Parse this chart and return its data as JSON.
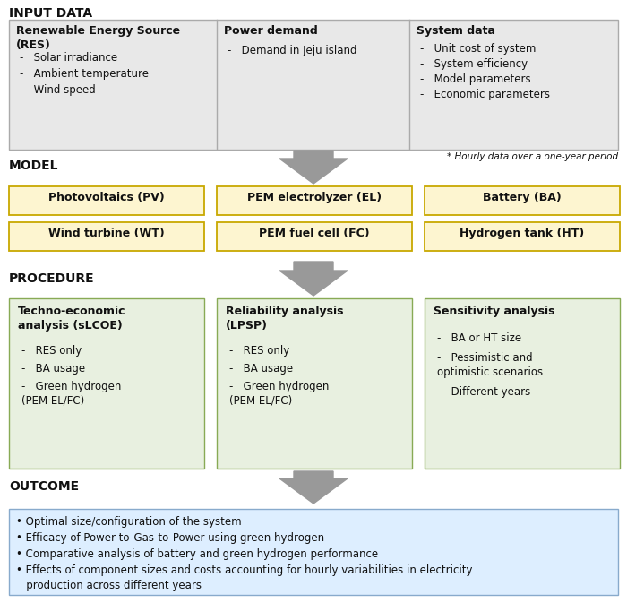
{
  "bg_color": "#ffffff",
  "input_box_color": "#e8e8e8",
  "input_box_edgecolor": "#aaaaaa",
  "model_box_color": "#fdf5d0",
  "model_box_edgecolor": "#c8a800",
  "procedure_box_color": "#e8f0e0",
  "procedure_box_edgecolor": "#88aa55",
  "outcome_box_color": "#ddeeff",
  "outcome_box_edgecolor": "#88aacc",
  "arrow_color": "#999999",
  "text_color": "#111111",
  "input_col1_title": "Renewable Energy Source\n(RES)",
  "input_col1_items": [
    "Solar irradiance",
    "Ambient temperature",
    "Wind speed"
  ],
  "input_col2_title": "Power demand",
  "input_col2_items": [
    "Demand in Jeju island"
  ],
  "input_col3_title": "System data",
  "input_col3_items": [
    "Unit cost of system",
    "System efficiency",
    "Model parameters",
    "Economic parameters"
  ],
  "input_footnote": "* Hourly data over a one-year period",
  "model_row1": [
    "Photovoltaics (PV)",
    "PEM electrolyzer (EL)",
    "Battery (BA)"
  ],
  "model_row2": [
    "Wind turbine (WT)",
    "PEM fuel cell (FC)",
    "Hydrogen tank (HT)"
  ],
  "proc_col1_title": "Techno-economic\nanalysis (sLCOE)",
  "proc_col1_items": [
    "RES only",
    "BA usage",
    "Green hydrogen\n(PEM EL/FC)"
  ],
  "proc_col2_title": "Reliability analysis\n(LPSP)",
  "proc_col2_items": [
    "RES only",
    "BA usage",
    "Green hydrogen\n(PEM EL/FC)"
  ],
  "proc_col3_title": "Sensitivity analysis",
  "proc_col3_items": [
    "BA or HT size",
    "Pessimistic and\noptimistic scenarios",
    "Different years"
  ],
  "outcome_items": [
    "• Optimal size/configuration of the system",
    "• Efficacy of Power-to-Gas-to-Power using green hydrogen",
    "• Comparative analysis of battery and green hydrogen performance",
    "• Effects of component sizes and costs accounting for hourly variabilities in electricity\n   production across different years"
  ],
  "section_fontsize": 10,
  "title_fontsize": 9,
  "item_fontsize": 8.5
}
